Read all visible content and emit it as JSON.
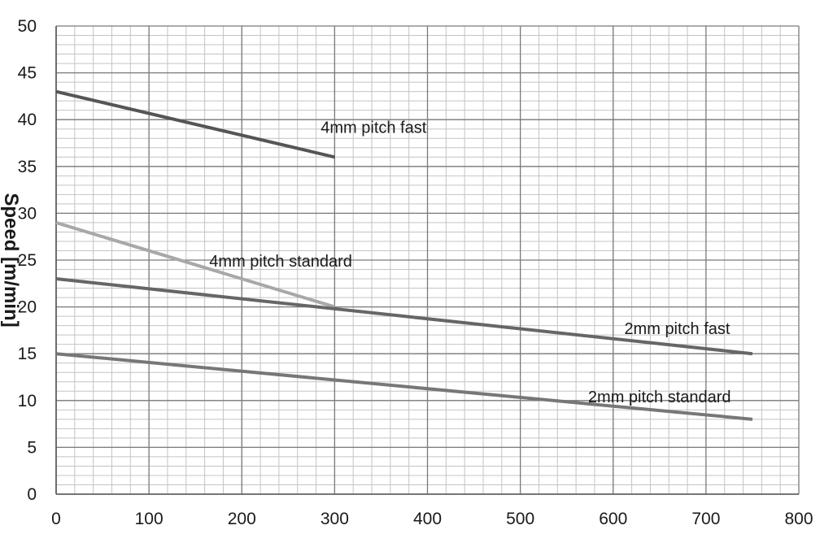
{
  "chart_data": {
    "type": "line",
    "ylabel": "Speed [m/min]",
    "xlim": [
      0,
      800
    ],
    "ylim": [
      0,
      50
    ],
    "x_major_ticks": [
      0,
      100,
      200,
      300,
      400,
      500,
      600,
      700,
      800
    ],
    "y_major_ticks": [
      0,
      5,
      10,
      15,
      20,
      25,
      30,
      35,
      40,
      45,
      50
    ],
    "x_tick_labels": [
      "0",
      "100",
      "200",
      "300",
      "400",
      "500",
      "600",
      "700",
      "800"
    ],
    "y_tick_labels": [
      "0",
      "5",
      "10",
      "15",
      "20",
      "25",
      "30",
      "35",
      "40",
      "45",
      "50"
    ],
    "x_minor_step": 20,
    "y_minor_step": 1,
    "grid": true,
    "series": [
      {
        "name": "4mm pitch fast",
        "x": [
          0,
          300
        ],
        "y": [
          43,
          36
        ],
        "color": "#555555",
        "label_at": [
          285,
          38.6
        ]
      },
      {
        "name": "4mm pitch standard",
        "x": [
          0,
          300
        ],
        "y": [
          29,
          20
        ],
        "color": "#a8a8a8",
        "label_at": [
          165,
          24.3
        ]
      },
      {
        "name": "2mm pitch fast",
        "x": [
          0,
          750
        ],
        "y": [
          23,
          15
        ],
        "color": "#666666",
        "label_at": [
          612,
          17.1
        ]
      },
      {
        "name": "2mm pitch standard",
        "x": [
          0,
          750
        ],
        "y": [
          15,
          8
        ],
        "color": "#777777",
        "label_at": [
          573,
          9.8
        ]
      }
    ]
  }
}
